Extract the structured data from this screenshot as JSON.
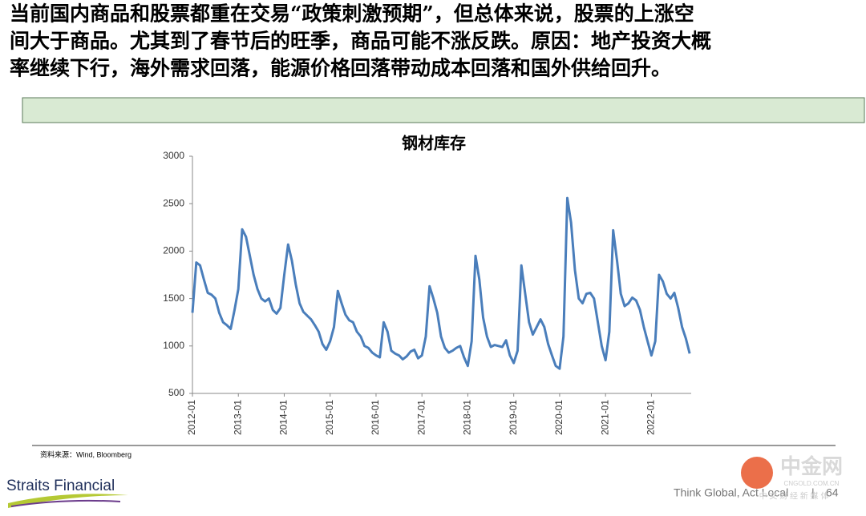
{
  "header": {
    "lines": [
      "当前国内商品和股票都重在交易“政策刺激预期”，但总体来说，股票的上涨空",
      "间大于商品。尤其到了春节后的旺季，商品可能不涨反跌。原因：地产投资大概",
      "率继续下行，海外需求回落，能源价格回落带动成本回落和国外供给回升。"
    ]
  },
  "chart_data": {
    "type": "line",
    "title": "钢材库存",
    "color": "#4a7ebb",
    "categories": [
      "2012-01",
      null,
      null,
      null,
      null,
      null,
      null,
      null,
      null,
      null,
      null,
      null,
      "2013-01",
      null,
      null,
      null,
      null,
      null,
      null,
      null,
      null,
      null,
      null,
      null,
      "2014-01",
      null,
      null,
      null,
      null,
      null,
      null,
      null,
      null,
      null,
      null,
      null,
      "2015-01",
      null,
      null,
      null,
      null,
      null,
      null,
      null,
      null,
      null,
      null,
      null,
      "2016-01",
      null,
      null,
      null,
      null,
      null,
      null,
      null,
      null,
      null,
      null,
      null,
      "2017-01",
      null,
      null,
      null,
      null,
      null,
      null,
      null,
      null,
      null,
      null,
      null,
      "2018-01",
      null,
      null,
      null,
      null,
      null,
      null,
      null,
      null,
      null,
      null,
      null,
      "2019-01",
      null,
      null,
      null,
      null,
      null,
      null,
      null,
      null,
      null,
      null,
      null,
      "2020-01",
      null,
      null,
      null,
      null,
      null,
      null,
      null,
      null,
      null,
      null,
      null,
      "2021-01",
      null,
      null,
      null,
      null,
      null,
      null,
      null,
      null,
      null,
      null,
      null,
      "2022-01",
      null,
      null,
      null,
      null,
      null,
      null,
      null,
      null,
      null,
      null
    ],
    "values": [
      1350,
      1880,
      1850,
      1700,
      1560,
      1540,
      1500,
      1350,
      1250,
      1220,
      1180,
      1380,
      1600,
      2230,
      2150,
      1950,
      1750,
      1600,
      1500,
      1470,
      1500,
      1380,
      1340,
      1400,
      1750,
      2070,
      1900,
      1650,
      1450,
      1360,
      1320,
      1280,
      1220,
      1150,
      1020,
      960,
      1050,
      1200,
      1580,
      1450,
      1330,
      1270,
      1250,
      1150,
      1100,
      1000,
      980,
      930,
      900,
      880,
      1250,
      1150,
      950,
      920,
      900,
      860,
      890,
      940,
      960,
      870,
      900,
      1100,
      1630,
      1500,
      1350,
      1100,
      980,
      930,
      950,
      980,
      1000,
      880,
      790,
      1050,
      1950,
      1700,
      1300,
      1100,
      990,
      1010,
      1000,
      990,
      1060,
      900,
      820,
      950,
      1850,
      1550,
      1250,
      1120,
      1200,
      1280,
      1200,
      1020,
      900,
      790,
      760,
      1100,
      2560,
      2300,
      1800,
      1500,
      1450,
      1550,
      1560,
      1500,
      1250,
      1000,
      850,
      1150,
      2220,
      1900,
      1550,
      1420,
      1450,
      1510,
      1480,
      1380,
      1200,
      1050,
      900,
      1050,
      1750,
      1680,
      1550,
      1500,
      1560,
      1400,
      1200,
      1080,
      920
    ],
    "ylim": [
      500,
      3000
    ],
    "yticks": [
      500,
      1000,
      1500,
      2000,
      2500,
      3000
    ],
    "grid": false
  },
  "source": "资料来源：Wind, Bloomberg",
  "footer": {
    "brand": "Straits Financial",
    "slogan": "Think Global, Act Local",
    "separator": "|",
    "page": "64"
  },
  "watermark": {
    "name": "中金网",
    "domain": "CNGOLD.COM.CN",
    "tagline": "中 文 财 经 新 媒 体"
  }
}
